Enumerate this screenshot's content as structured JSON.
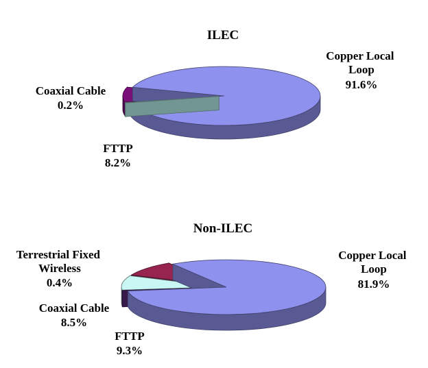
{
  "chart_data": [
    {
      "type": "pie",
      "title": "ILEC",
      "slices": [
        {
          "label": "Copper Local Loop",
          "value": 91.6,
          "value_label": "91.6%",
          "color": "#8F91EE"
        },
        {
          "label": "FTTP",
          "value": 8.2,
          "value_label": "8.2%",
          "color": "#7A0F7A"
        },
        {
          "label": "Coaxial Cable",
          "value": 0.2,
          "value_label": "0.2%",
          "color": "#B8F2EF"
        }
      ],
      "exploded": [
        "FTTP",
        "Coaxial Cable"
      ],
      "style": "3d"
    },
    {
      "type": "pie",
      "title": "Non-ILEC",
      "slices": [
        {
          "label": "Copper Local Loop",
          "value": 81.9,
          "value_label": "81.9%",
          "color": "#8F91EE"
        },
        {
          "label": "FTTP",
          "value": 9.3,
          "value_label": "9.3%",
          "color": "#96244F"
        },
        {
          "label": "Coaxial Cable",
          "value": 8.5,
          "value_label": "8.5%",
          "color": "#C8F7F4"
        },
        {
          "label": "Terrestrial  Fixed Wireless",
          "value": 0.4,
          "value_label": "0.4%",
          "color": "#5A2A7A"
        }
      ],
      "exploded": [
        "FTTP",
        "Coaxial Cable",
        "Terrestrial  Fixed Wireless"
      ],
      "style": "3d"
    }
  ]
}
